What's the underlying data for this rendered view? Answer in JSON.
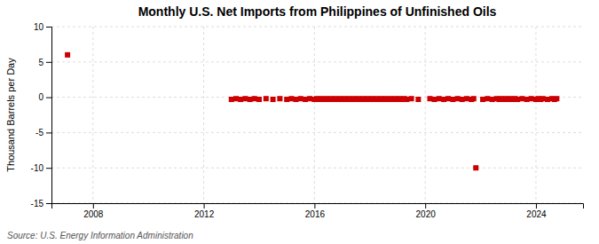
{
  "chart_data": {
    "type": "scatter",
    "title": "Monthly U.S. Net Imports from Philippines of Unfinished Oils",
    "ylabel": "Thousand Barrels per Day",
    "annotations": [
      "Source: U.S. Energy Information Administration"
    ],
    "color": "#CC0000",
    "marker": "square",
    "grid": true,
    "xlim": [
      2006.5,
      2025.7
    ],
    "xticks": [
      2008,
      2012,
      2016,
      2020,
      2024
    ],
    "ylim": [
      -15,
      10
    ],
    "yticks": [
      -15,
      -10,
      -5,
      0,
      5,
      10
    ],
    "x": [
      2007.08,
      2013.0,
      2013.17,
      2013.33,
      2013.5,
      2013.67,
      2013.83,
      2014.0,
      2014.25,
      2014.5,
      2014.75,
      2015.0,
      2015.17,
      2015.33,
      2015.5,
      2015.67,
      2015.83,
      2016.0,
      2016.08,
      2016.17,
      2016.25,
      2016.33,
      2016.42,
      2016.5,
      2016.58,
      2016.67,
      2016.75,
      2016.83,
      2016.92,
      2017.0,
      2017.08,
      2017.17,
      2017.25,
      2017.33,
      2017.42,
      2017.5,
      2017.58,
      2017.67,
      2017.75,
      2017.83,
      2017.92,
      2018.0,
      2018.08,
      2018.17,
      2018.25,
      2018.33,
      2018.42,
      2018.5,
      2018.58,
      2018.67,
      2018.75,
      2018.83,
      2018.92,
      2019.0,
      2019.08,
      2019.17,
      2019.25,
      2019.33,
      2019.5,
      2019.75,
      2020.17,
      2020.33,
      2020.5,
      2020.67,
      2020.83,
      2021.0,
      2021.17,
      2021.33,
      2021.5,
      2021.67,
      2021.75,
      2021.83,
      2022.08,
      2022.25,
      2022.42,
      2022.58,
      2022.67,
      2022.75,
      2022.83,
      2022.92,
      2023.0,
      2023.08,
      2023.17,
      2023.25,
      2023.33,
      2023.5,
      2023.67,
      2023.83,
      2024.0,
      2024.08,
      2024.17,
      2024.25,
      2024.42,
      2024.58,
      2024.67,
      2024.75
    ],
    "values": [
      6.0,
      -0.3,
      -0.2,
      -0.3,
      -0.2,
      -0.3,
      -0.2,
      -0.3,
      -0.2,
      -0.3,
      -0.2,
      -0.3,
      -0.2,
      -0.3,
      -0.2,
      -0.3,
      -0.2,
      -0.3,
      -0.2,
      -0.3,
      -0.2,
      -0.3,
      -0.2,
      -0.3,
      -0.2,
      -0.3,
      -0.2,
      -0.3,
      -0.2,
      -0.3,
      -0.2,
      -0.3,
      -0.2,
      -0.3,
      -0.2,
      -0.3,
      -0.2,
      -0.3,
      -0.2,
      -0.3,
      -0.2,
      -0.3,
      -0.2,
      -0.3,
      -0.2,
      -0.3,
      -0.2,
      -0.3,
      -0.2,
      -0.3,
      -0.2,
      -0.3,
      -0.2,
      -0.3,
      -0.2,
      -0.3,
      -0.2,
      -0.3,
      -0.2,
      -0.3,
      -0.2,
      -0.3,
      -0.2,
      -0.3,
      -0.2,
      -0.3,
      -0.2,
      -0.3,
      -0.2,
      -0.3,
      -0.2,
      -10.0,
      -0.3,
      -0.2,
      -0.3,
      -0.2,
      -0.3,
      -0.2,
      -0.3,
      -0.2,
      -0.3,
      -0.2,
      -0.3,
      -0.2,
      -0.3,
      -0.2,
      -0.3,
      -0.2,
      -0.3,
      -0.2,
      -0.3,
      -0.2,
      -0.3,
      -0.2,
      -0.3,
      -0.2
    ]
  }
}
